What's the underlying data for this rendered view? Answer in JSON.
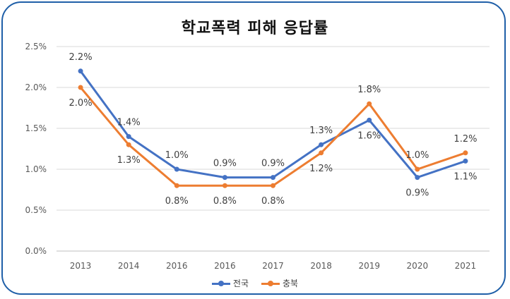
{
  "chart_data": {
    "type": "line",
    "title": "학교폭력 피해 응답률",
    "categories": [
      "2013",
      "2014",
      "2016",
      "2016",
      "2017",
      "2018",
      "2019",
      "2020",
      "2021"
    ],
    "ylim": [
      0,
      2.5
    ],
    "yticks": [
      "0.0%",
      "0.5%",
      "1.0%",
      "1.5%",
      "2.0%",
      "2.5%"
    ],
    "grid": true,
    "legend_position": "bottom",
    "series": [
      {
        "name": "전국",
        "color": "#4472c4",
        "values": [
          2.2,
          1.4,
          1.0,
          0.9,
          0.9,
          1.3,
          1.6,
          0.9,
          1.1
        ],
        "labels": [
          "2.2%",
          "1.4%",
          "1.0%",
          "0.9%",
          "0.9%",
          "1.3%",
          "1.6%",
          "0.9%",
          "1.1%"
        ]
      },
      {
        "name": "충북",
        "color": "#ed7d31",
        "values": [
          2.0,
          1.3,
          0.8,
          0.8,
          0.8,
          1.2,
          1.8,
          1.0,
          1.2
        ],
        "labels": [
          "2.0%",
          "1.3%",
          "0.8%",
          "0.8%",
          "0.8%",
          "1.2%",
          "1.8%",
          "1.0%",
          "1.2%"
        ]
      }
    ]
  }
}
